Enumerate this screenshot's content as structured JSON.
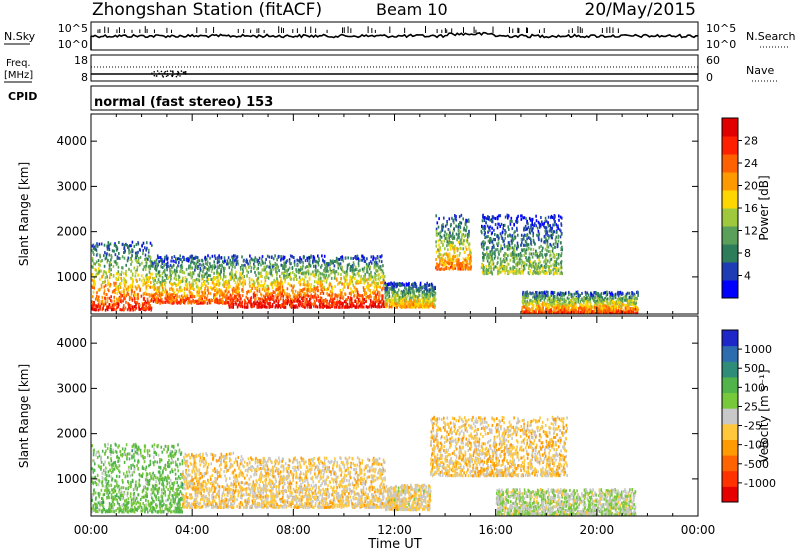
{
  "header": {
    "station": "Zhongshan Station (fitACF)",
    "beam": "Beam 10",
    "date": "20/May/2015"
  },
  "strip_nsky": {
    "label": "N.Sky",
    "left_ticks": [
      "10^5",
      "10^0"
    ],
    "right_label": "N.Search",
    "right_ticks": [
      "10^5",
      "10^0"
    ]
  },
  "strip_freq": {
    "label_line1": "Freq.",
    "label_line2": "[MHz]",
    "left_ticks": [
      "18",
      "8"
    ],
    "right_label": "Nave",
    "right_ticks": [
      "60",
      "0"
    ]
  },
  "strip_cpid": {
    "label": "CPID",
    "value": "normal (fast stereo) 153"
  },
  "colors": {
    "power_scale": [
      "#0000ff",
      "#1e3cb4",
      "#2e7d5a",
      "#5aa05a",
      "#a0c83c",
      "#ffd700",
      "#ff9900",
      "#ff6000",
      "#ff2000",
      "#e00000"
    ],
    "velocity_scale": [
      "#1e28c8",
      "#2e6cb0",
      "#2e8c78",
      "#50b44a",
      "#78c83c",
      "#c8c8c8",
      "#ffc83c",
      "#ff9a00",
      "#ff6400",
      "#ff3200",
      "#e60000"
    ]
  },
  "chart_data": [
    {
      "type": "heatmap",
      "name": "power",
      "xlabel": "",
      "ylabel": "Slant Range [km]",
      "xlim": [
        "00:00",
        "00:00"
      ],
      "ylim": [
        180,
        4600
      ],
      "y_ticks": [
        "1000",
        "2000",
        "3000",
        "4000"
      ],
      "x_ticks": [
        "00:00",
        "04:00",
        "08:00",
        "12:00",
        "16:00",
        "20:00",
        "00:00"
      ],
      "colorbar": {
        "label": "Power [dB]",
        "ticks": [
          "4",
          "8",
          "12",
          "16",
          "20",
          "24",
          "28"
        ],
        "range": [
          0,
          30
        ]
      },
      "echo_regions_hours_km": [
        {
          "t0": 0.0,
          "t1": 2.4,
          "r0": 300,
          "r1": 1800,
          "peak_db": 26
        },
        {
          "t0": 2.4,
          "t1": 5.4,
          "r0": 450,
          "r1": 1500,
          "peak_db": 24
        },
        {
          "t0": 5.4,
          "t1": 11.6,
          "r0": 360,
          "r1": 1500,
          "peak_db": 28
        },
        {
          "t0": 11.6,
          "t1": 13.6,
          "r0": 360,
          "r1": 900,
          "peak_db": 20
        },
        {
          "t0": 13.6,
          "t1": 15.0,
          "r0": 1200,
          "r1": 2400,
          "peak_db": 22
        },
        {
          "t0": 15.4,
          "t1": 18.6,
          "r0": 1100,
          "r1": 2400,
          "peak_db": 14
        },
        {
          "t0": 17.0,
          "t1": 21.6,
          "r0": 200,
          "r1": 700,
          "peak_db": 26
        }
      ]
    },
    {
      "type": "heatmap",
      "name": "velocity",
      "xlabel": "Time UT",
      "ylabel": "Slant Range [km]",
      "xlim": [
        "00:00",
        "00:00"
      ],
      "ylim": [
        180,
        4600
      ],
      "y_ticks": [
        "1000",
        "2000",
        "3000",
        "4000"
      ],
      "x_ticks": [
        "00:00",
        "04:00",
        "08:00",
        "12:00",
        "16:00",
        "20:00",
        "00:00"
      ],
      "colorbar": {
        "label": "Velocity [m s⁻¹]",
        "ticks": [
          "1000",
          "500",
          "100",
          "25",
          "-25",
          "-100",
          "-500",
          "-1000"
        ],
        "range": [
          -1200,
          1200
        ]
      },
      "echo_regions_hours_km": [
        {
          "t0": 0.0,
          "t1": 3.6,
          "r0": 300,
          "r1": 1800,
          "velocity": 300
        },
        {
          "t0": 3.6,
          "t1": 6.0,
          "r0": 400,
          "r1": 1600,
          "velocity": -200
        },
        {
          "t0": 6.0,
          "t1": 11.6,
          "r0": 400,
          "r1": 1500,
          "velocity": -150
        },
        {
          "t0": 11.6,
          "t1": 13.4,
          "r0": 350,
          "r1": 900,
          "velocity": -120
        },
        {
          "t0": 13.4,
          "t1": 18.8,
          "r0": 1100,
          "r1": 2400,
          "velocity": -200
        },
        {
          "t0": 16.0,
          "t1": 21.5,
          "r0": 200,
          "r1": 800,
          "velocity": 80
        }
      ]
    }
  ]
}
